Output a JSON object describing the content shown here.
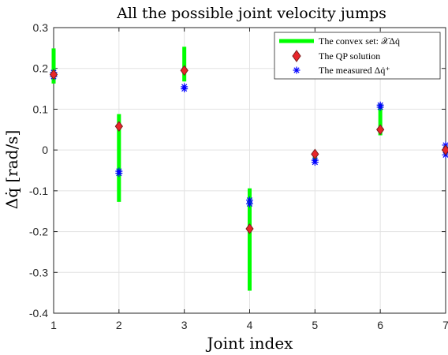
{
  "chart_data": {
    "type": "scatter",
    "title": "All the possible joint velocity jumps",
    "xlabel": "Joint index",
    "ylabel": "Δq̇ [rad/s]",
    "xlim": [
      1,
      7
    ],
    "ylim": [
      -0.4,
      0.3
    ],
    "xticks": [
      "1",
      "2",
      "3",
      "4",
      "5",
      "6",
      "7"
    ],
    "yticks": [
      "-0.4",
      "-0.3",
      "-0.2",
      "-0.1",
      "0",
      "0.1",
      "0.2",
      "0.3"
    ],
    "grid": true,
    "legend_position": "top-right",
    "colors": {
      "convex": "#00ff00",
      "qp_fill": "#e8262a",
      "qp_edge": "#7a1d1d",
      "measured": "#0000ff"
    },
    "series": [
      {
        "name": "The convex set: 𝒳Δq̇",
        "kind": "range",
        "x": [
          1,
          2,
          3,
          4,
          5,
          6,
          7
        ],
        "low": [
          0.163,
          -0.127,
          0.168,
          -0.345,
          -0.024,
          0.036,
          -0.01
        ],
        "high": [
          0.249,
          0.088,
          0.253,
          -0.094,
          -0.004,
          0.113,
          0.01
        ]
      },
      {
        "name": "The QP solution",
        "kind": "point",
        "x": [
          1,
          2,
          3,
          4,
          5,
          6,
          7
        ],
        "y": [
          0.185,
          0.058,
          0.195,
          -0.193,
          -0.01,
          0.05,
          0.0
        ]
      },
      {
        "name": "The measured Δq̇⁺",
        "kind": "point",
        "x": [
          1,
          1,
          2,
          2,
          3,
          3,
          4,
          4,
          5,
          5,
          6,
          6,
          7,
          7
        ],
        "y": [
          0.19,
          0.18,
          -0.052,
          -0.057,
          0.15,
          0.155,
          -0.123,
          -0.132,
          -0.025,
          -0.03,
          0.11,
          0.105,
          0.012,
          -0.012
        ]
      }
    ]
  }
}
